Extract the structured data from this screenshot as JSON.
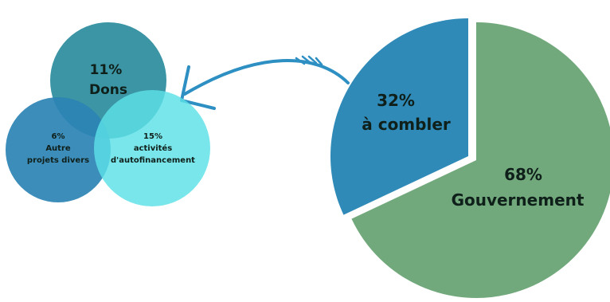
{
  "chart_data": [
    {
      "type": "pie",
      "exploded": true,
      "slices": [
        {
          "value": 68,
          "pct_label": "68%",
          "label": "Gouvernement",
          "color": "#72a97c"
        },
        {
          "value": 32,
          "pct_label": "32%",
          "label": "à combler",
          "color": "#2f8ab8"
        }
      ]
    },
    {
      "type": "venn",
      "circles": [
        {
          "value": 11,
          "pct_label": "11%",
          "label": "Dons",
          "color": "#2b8c9c"
        },
        {
          "value": 6,
          "pct_label": "6%",
          "label_lines": [
            "Autre",
            "projets divers"
          ],
          "color": "#2b83b4"
        },
        {
          "value": 15,
          "pct_label": "15%",
          "label_lines": [
            "activités",
            "d'autofinancement"
          ],
          "color": "#5ce1e6"
        }
      ]
    }
  ],
  "connector": {
    "color": "#2e8fc2",
    "icon": "curved-arrow-icon"
  }
}
